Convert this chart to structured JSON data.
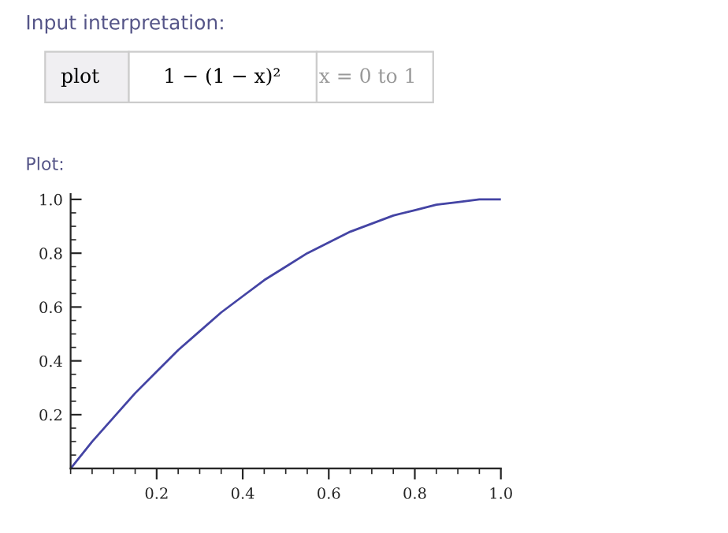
{
  "chart_data": {
    "type": "line",
    "annotations": [
      "Input interpretation:",
      "plot",
      "1 − (1 − x)²",
      "x = 0 to 1",
      "Plot:"
    ],
    "x": [
      0,
      0.05,
      0.1,
      0.15,
      0.2,
      0.25,
      0.3,
      0.35,
      0.4,
      0.45,
      0.5,
      0.55,
      0.6,
      0.65,
      0.7,
      0.75,
      0.8,
      0.85,
      0.9,
      0.95,
      1.0
    ],
    "series": [
      {
        "color": "#4444a4",
        "values": [
          0,
          0.1,
          0.19,
          0.28,
          0.36,
          0.44,
          0.51,
          0.58,
          0.64,
          0.7,
          0.75,
          0.8,
          0.84,
          0.88,
          0.91,
          0.94,
          0.96,
          0.98,
          0.99,
          1.0,
          1.0
        ]
      }
    ],
    "xlim": [
      0,
      1.0
    ],
    "ylim": [
      0,
      1.02
    ],
    "xticks": [
      0.2,
      0.4,
      0.6,
      0.8,
      {
        "value": 1,
        "label": "1.0"
      }
    ],
    "yticks": [
      0.2,
      0.4,
      0.6,
      0.8,
      {
        "value": 1,
        "label": "1.0"
      }
    ],
    "grid": false,
    "marker": "none",
    "line_style": "solid"
  }
}
